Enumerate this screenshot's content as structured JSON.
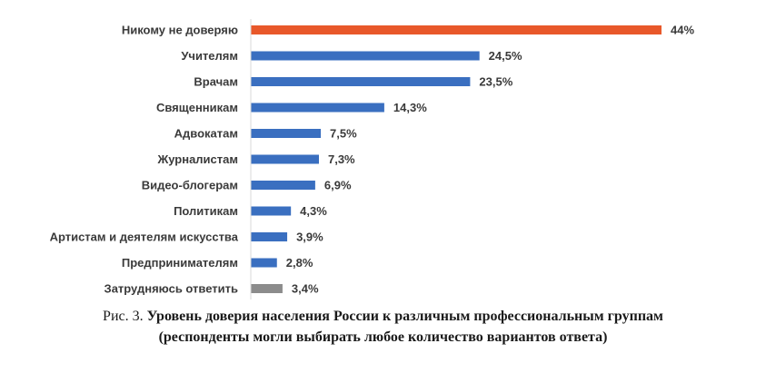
{
  "chart_data": {
    "type": "bar",
    "orientation": "horizontal",
    "categories": [
      "Никому не доверяю",
      "Учителям",
      "Врачам",
      "Священникам",
      "Адвокатам",
      "Журналистам",
      "Видео-блогерам",
      "Политикам",
      "Артистам и деятелям искусства",
      "Предпринимателям",
      "Затрудняюсь ответить"
    ],
    "values": [
      44,
      24.5,
      23.5,
      14.3,
      7.5,
      7.3,
      6.9,
      4.3,
      3.9,
      2.8,
      3.4
    ],
    "value_labels": [
      "44%",
      "24,5%",
      "23,5%",
      "14,3%",
      "7,5%",
      "7,3%",
      "6,9%",
      "4,3%",
      "3,9%",
      "2,8%",
      "3,4%"
    ],
    "bar_colors": [
      "#e8582a",
      "#3a6fc0",
      "#3a6fc0",
      "#3a6fc0",
      "#3a6fc0",
      "#3a6fc0",
      "#3a6fc0",
      "#3a6fc0",
      "#3a6fc0",
      "#3a6fc0",
      "#8c8c8c"
    ],
    "xlim": [
      0,
      44
    ],
    "grid": false,
    "legend": "none"
  },
  "caption": {
    "prefix": "Рис. 3. ",
    "title": "Уровень доверия населения России к различным профессиональным группам",
    "subtitle": "(респонденты могли выбирать любое количество вариантов ответа)"
  }
}
